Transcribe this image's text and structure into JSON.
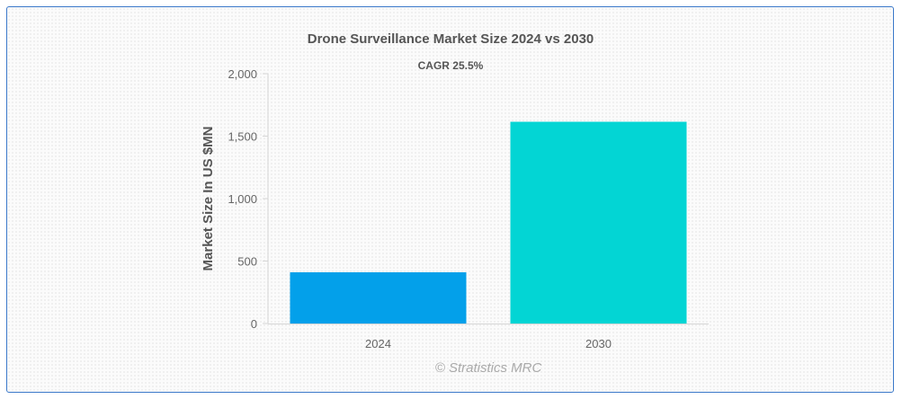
{
  "chart_data": {
    "type": "bar",
    "title": "Drone Surveillance Market Size 2024 vs 2030",
    "subtitle": "CAGR 25.5%",
    "xlabel": "",
    "ylabel": "Market Size In US $MN",
    "categories": [
      "2024",
      "2030"
    ],
    "values": [
      410,
      1615
    ],
    "ylim": [
      0,
      2000
    ],
    "yticks": [
      0,
      500,
      1000,
      1500,
      2000
    ],
    "ytick_labels": [
      "0",
      "500",
      "1,000",
      "1,500",
      "2,000"
    ],
    "bar_colors": [
      "#03a0ea",
      "#03d5d4"
    ],
    "grid": false,
    "legend": "none"
  },
  "credit": "© Stratistics MRC"
}
